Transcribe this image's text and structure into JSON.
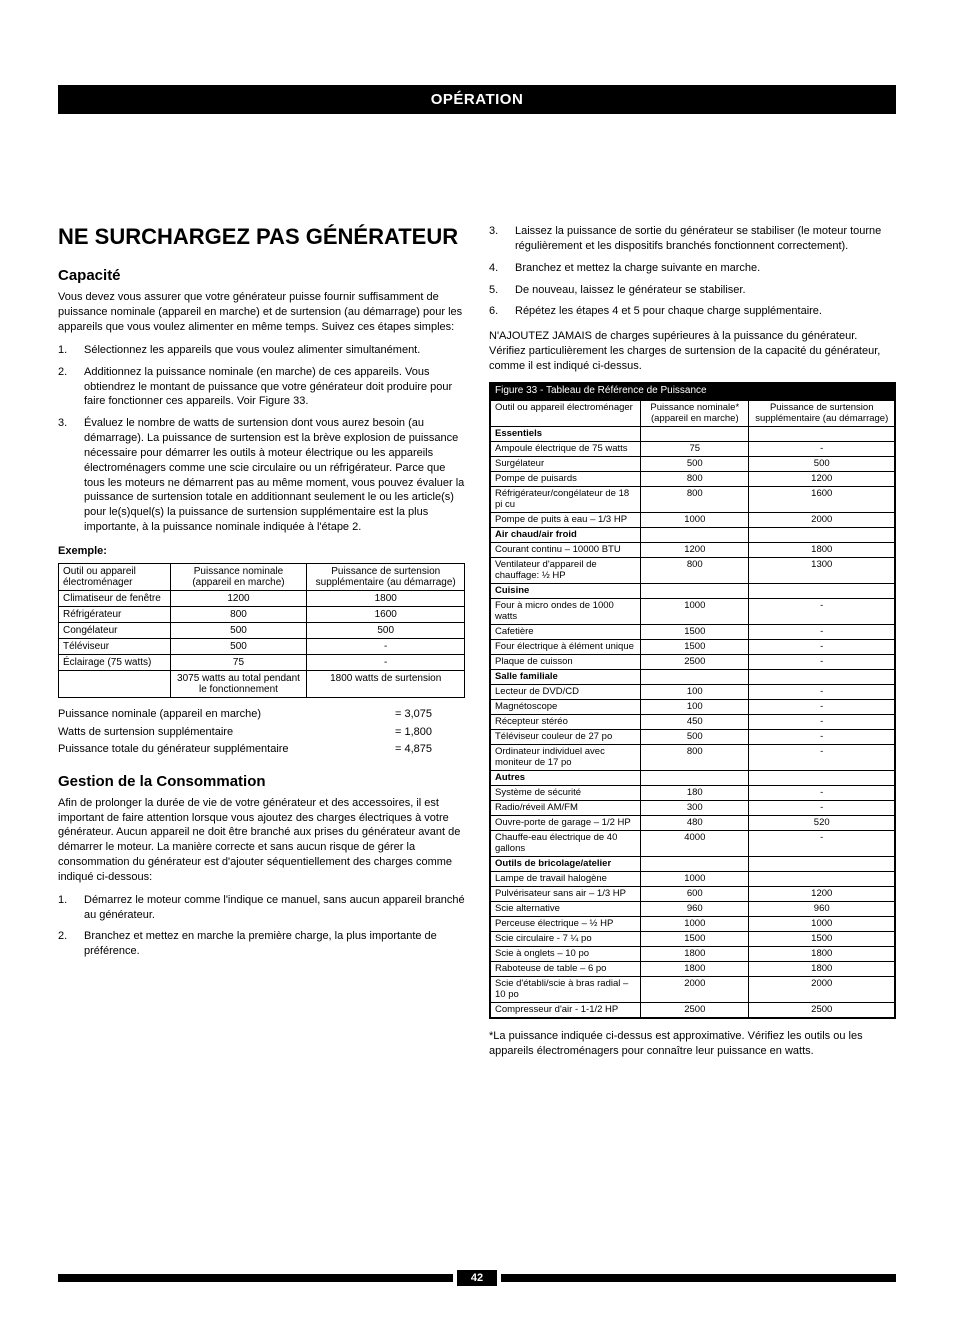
{
  "section_bar": "OPÉRATION",
  "left": {
    "heading": "NE SURCHARGEZ PAS GÉNÉRATEUR",
    "capacity_heading": "Capacité",
    "capacity_para": "Vous devez vous assurer que votre générateur puisse fournir suffisamment de puissance nominale (appareil en marche) et de surtension (au démarrage) pour les appareils que vous voulez alimenter en même temps. Suivez ces étapes simples:",
    "steps": [
      "Sélectionnez les appareils que vous voulez alimenter simultanément.",
      "Additionnez la puissance nominale (en marche) de ces appareils. Vous obtiendrez le montant de puissance que votre générateur doit produire pour faire fonctionner ces appareils. Voir Figure 33.",
      "Évaluez le nombre de watts de surtension dont vous aurez besoin (au démarrage). La puissance de surtension est la brève explosion de puissance nécessaire pour démarrer les outils à moteur électrique ou les appareils électroménagers comme une scie circulaire ou un réfrigérateur. Parce que tous les moteurs ne démarrent pas au même moment, vous pouvez évaluer la puissance de surtension totale en additionnant seulement le ou les article(s) pour le(s)quel(s) la puissance de surtension supplémentaire est la plus importante, à la puissance nominale indiquée à l'étape 2."
    ],
    "example_label": "Exemple:",
    "example_table": {
      "headers": [
        "Outil ou appareil électroménager",
        "Puissance nominale (appareil en marche)",
        "Puissance de surtension supplémentaire (au démarrage)"
      ],
      "rows": [
        [
          "Climatiseur de fenêtre",
          "1200",
          "1800"
        ],
        [
          "Réfrigérateur",
          "800",
          "1600"
        ],
        [
          "Congélateur",
          "500",
          "500"
        ],
        [
          "Téléviseur",
          "500",
          "-"
        ],
        [
          "Éclairage (75 watts)",
          "75",
          "-"
        ]
      ],
      "total_row": [
        "",
        "3075 watts au total pendant le fonctionnement",
        "1800 watts de surtension"
      ]
    },
    "totals": [
      {
        "label": "Puissance nominale (appareil en marche)",
        "value": "= 3,075"
      },
      {
        "label": "Watts de surtension supplémentaire",
        "value": "= 1,800"
      },
      {
        "label": "Puissance totale du générateur supplémentaire",
        "value": "= 4,875"
      }
    ],
    "mgmt_heading": "Gestion de la Consommation",
    "mgmt_para": "Afin de prolonger la durée de vie de votre générateur et des accessoires, il est important de faire attention lorsque vous ajoutez des charges électriques à votre générateur. Aucun appareil ne doit être branché aux prises du générateur avant de démarrer le moteur. La manière correcte et sans aucun risque de gérer la consommation du générateur est d'ajouter séquentiellement des charges comme indiqué ci-dessous:",
    "mgmt_steps": [
      "Démarrez le moteur comme l'indique ce manuel, sans aucun appareil branché au générateur.",
      "Branchez et mettez en marche la première charge, la plus importante de préférence."
    ]
  },
  "right": {
    "cont_steps_start": 3,
    "cont_steps": [
      "Laissez la puissance de sortie du générateur se stabiliser (le moteur tourne régulièrement et les dispositifs branchés fonctionnent correctement).",
      "Branchez et mettez la charge suivante en marche.",
      "De nouveau, laissez le générateur se stabiliser.",
      "Répétez les étapes 4 et 5 pour chaque charge supplémentaire."
    ],
    "warn_para": "N'AJOUTEZ JAMAIS de charges supérieures à la puissance du générateur. Vérifiez particulièrement les charges de surtension de la capacité du générateur, comme il est indiqué ci-dessus.",
    "fig_caption": "Figure 33 - Tableau de Référence de Puissance",
    "table_headers": [
      "Outil ou appareil électroménager",
      "Puissance nominale* (appareil en marche)",
      "Puissance de surtension supplémentaire (au démarrage)"
    ],
    "categories": [
      {
        "name": "Essentiels",
        "rows": [
          [
            "Ampoule électrique de 75 watts",
            "75",
            "-"
          ],
          [
            "Surgélateur",
            "500",
            "500"
          ],
          [
            "Pompe de puisards",
            "800",
            "1200"
          ],
          [
            "Réfrigérateur/congélateur de 18 pi cu",
            "800",
            "1600"
          ],
          [
            "Pompe de puits à eau – 1/3 HP",
            "1000",
            "2000"
          ]
        ]
      },
      {
        "name": "Air chaud/air froid",
        "rows": [
          [
            "Courant continu – 10000 BTU",
            "1200",
            "1800"
          ],
          [
            "Ventilateur d'appareil de chauffage: ½ HP",
            "800",
            "1300"
          ]
        ]
      },
      {
        "name": "Cuisine",
        "rows": [
          [
            "Four à micro ondes de 1000 watts",
            "1000",
            "-"
          ],
          [
            "Cafetière",
            "1500",
            "-"
          ],
          [
            "Four électrique à élément unique",
            "1500",
            "-"
          ],
          [
            "Plaque de cuisson",
            "2500",
            "-"
          ]
        ]
      },
      {
        "name": "Salle familiale",
        "rows": [
          [
            "Lecteur de DVD/CD",
            "100",
            "-"
          ],
          [
            "Magnétoscope",
            "100",
            "-"
          ],
          [
            "Récepteur stéréo",
            "450",
            "-"
          ],
          [
            "Téléviseur couleur de 27 po",
            "500",
            "-"
          ],
          [
            "Ordinateur individuel avec moniteur de 17 po",
            "800",
            "-"
          ]
        ]
      },
      {
        "name": "Autres",
        "rows": [
          [
            "Système de sécurité",
            "180",
            "-"
          ],
          [
            "Radio/réveil AM/FM",
            "300",
            "-"
          ],
          [
            "Ouvre-porte de garage – 1/2 HP",
            "480",
            "520"
          ],
          [
            "Chauffe-eau électrique de 40 gallons",
            "4000",
            "-"
          ]
        ]
      },
      {
        "name": "Outils de bricolage/atelier",
        "rows": [
          [
            "Lampe de travail halogène",
            "1000",
            ""
          ],
          [
            "Pulvérisateur sans air – 1/3 HP",
            "600",
            "1200"
          ],
          [
            "Scie alternative",
            "960",
            "960"
          ],
          [
            "Perceuse électrique – ½ HP",
            "1000",
            "1000"
          ],
          [
            "Scie circulaire - 7 ¼ po",
            "1500",
            "1500"
          ],
          [
            "Scie à onglets – 10 po",
            "1800",
            "1800"
          ],
          [
            "Raboteuse de table – 6 po",
            "1800",
            "1800"
          ],
          [
            "Scie d'établi/scie à bras radial – 10 po",
            "2000",
            "2000"
          ],
          [
            "Compresseur d'air - 1-1/2 HP",
            "2500",
            "2500"
          ]
        ]
      }
    ],
    "footnote": "*La puissance indiquée ci-dessus est approximative. Vérifiez les outils ou les appareils électroménagers pour connaître leur puissance en watts."
  },
  "page_number": "42"
}
